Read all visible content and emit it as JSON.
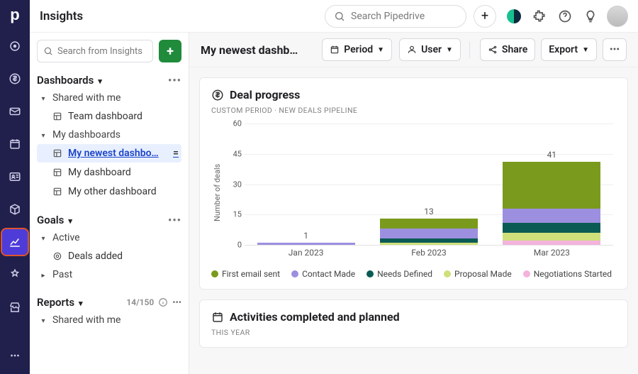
{
  "app": {
    "title": "Insights"
  },
  "header": {
    "search_placeholder": "Search Pipedrive"
  },
  "sidebar": {
    "search_placeholder": "Search from Insights",
    "sections": {
      "dashboards": {
        "title": "Dashboards",
        "shared_label": "Shared with me",
        "shared_items": [
          "Team dashboard"
        ],
        "mine_label": "My dashboards",
        "mine_items": [
          "My newest dashbo…",
          "My dashboard",
          "My other dashboard"
        ]
      },
      "goals": {
        "title": "Goals",
        "active_label": "Active",
        "active_items": [
          "Deals added"
        ],
        "past_label": "Past"
      },
      "reports": {
        "title": "Reports",
        "count": "14/150",
        "shared_label": "Shared with me"
      }
    }
  },
  "contentHeader": {
    "title": "My newest dashb…",
    "period_label": "Period",
    "user_label": "User",
    "share_label": "Share",
    "export_label": "Export"
  },
  "cards": {
    "dealProgress": {
      "title": "Deal progress",
      "subtitle": "CUSTOM PERIOD  ·  NEW DEALS PIPELINE",
      "ylabel": "Number of deals",
      "ylim": [
        0,
        60
      ],
      "ytick_step": 15,
      "categories": [
        "Jan 2023",
        "Feb 2023",
        "Mar 2023"
      ],
      "series": [
        {
          "name": "First email sent",
          "color": "#7a9a1d",
          "values": [
            0,
            5,
            23
          ]
        },
        {
          "name": "Contact Made",
          "color": "#9c8fe0",
          "values": [
            1,
            5,
            7
          ]
        },
        {
          "name": "Needs Defined",
          "color": "#0b5b55",
          "values": [
            0,
            2,
            5
          ]
        },
        {
          "name": "Proposal Made",
          "color": "#cfe07b",
          "values": [
            0,
            1,
            4
          ]
        },
        {
          "name": "Negotiations Started",
          "color": "#f3b3dc",
          "values": [
            0,
            0,
            2
          ]
        }
      ],
      "totals": [
        1,
        13,
        41
      ],
      "background": "#ffffff",
      "grid_color": "#eeeeee"
    },
    "activities": {
      "title": "Activities completed and planned",
      "subtitle": "THIS YEAR"
    }
  }
}
